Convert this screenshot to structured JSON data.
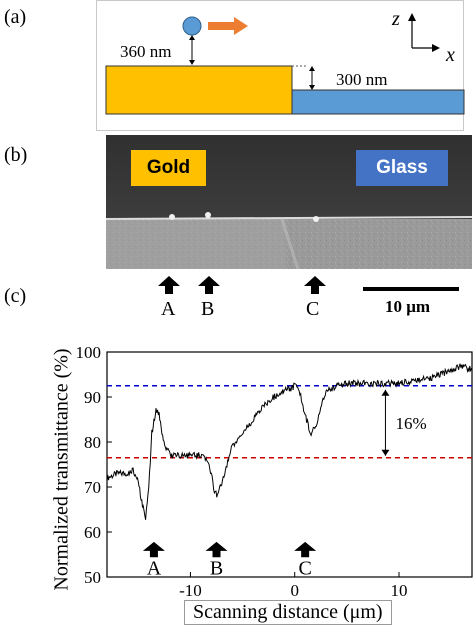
{
  "panels": {
    "a": {
      "label": "(a)",
      "dim_top": "360 nm",
      "dim_step": "300 nm",
      "axis_z": "z",
      "axis_x": "x"
    },
    "b": {
      "label": "(b)",
      "gold_label": "Gold",
      "glass_label": "Glass",
      "markers": [
        "A",
        "B",
        "C"
      ],
      "scale_bar": "10 μm"
    },
    "c": {
      "label": "(c)"
    }
  },
  "colors": {
    "gold": "#FFC000",
    "glass": "#5B9BD5",
    "glass_box": "#4472C4",
    "probe_tip": "#5B9BD5",
    "arrow": "#ED7D31",
    "sem_dark": "#3b3b3b",
    "sem_light": "#9a9a9a",
    "upper_line": "#0000CC",
    "lower_line": "#CC0000"
  },
  "chart_data": {
    "type": "line",
    "title": "",
    "xlabel": "Scanning distance (μm)",
    "ylabel": "Normalized transmittance (%)",
    "xlim": [
      -18,
      17
    ],
    "ylim": [
      50,
      100
    ],
    "x_ticks": [
      -10,
      0,
      10
    ],
    "y_ticks": [
      50,
      60,
      70,
      80,
      90,
      100
    ],
    "series": [
      {
        "x": [
          -18,
          -17,
          -16,
          -15.5,
          -15,
          -14.6,
          -14.3,
          -14,
          -13.7,
          -13.3,
          -13,
          -12.6,
          -12.2,
          -11.8,
          -11,
          -10,
          -9,
          -8.5,
          -8,
          -7.7,
          -7.4,
          -7,
          -6.5,
          -6,
          -5,
          -4,
          -3,
          -2,
          -1,
          -0.3,
          0,
          0.5,
          1,
          1.5,
          2,
          2.5,
          3,
          4,
          5,
          6,
          7,
          8,
          9,
          10,
          11,
          12,
          13,
          14,
          15,
          16,
          17
        ],
        "y": [
          72,
          73,
          73,
          74,
          71,
          66,
          63,
          70,
          82,
          87,
          86,
          80,
          78,
          77,
          77,
          77,
          77,
          76,
          73,
          69,
          68,
          71,
          75,
          79,
          82,
          85,
          88,
          90,
          91.5,
          92,
          92.5,
          91,
          86,
          82,
          83,
          88,
          91,
          92.5,
          93,
          93,
          93,
          93,
          93,
          93,
          93.5,
          94,
          94,
          95,
          96,
          97,
          96
        ]
      }
    ],
    "reference_lines": [
      {
        "y": 92.5,
        "style": "dashed",
        "color": "blue"
      },
      {
        "y": 76.5,
        "style": "dashed",
        "color": "red"
      }
    ],
    "annotations": [
      {
        "text": "16%",
        "x": 8.7
      },
      {
        "text": "A",
        "x": -13.5
      },
      {
        "text": "B",
        "x": -7.5
      },
      {
        "text": "C",
        "x": 1
      }
    ]
  }
}
